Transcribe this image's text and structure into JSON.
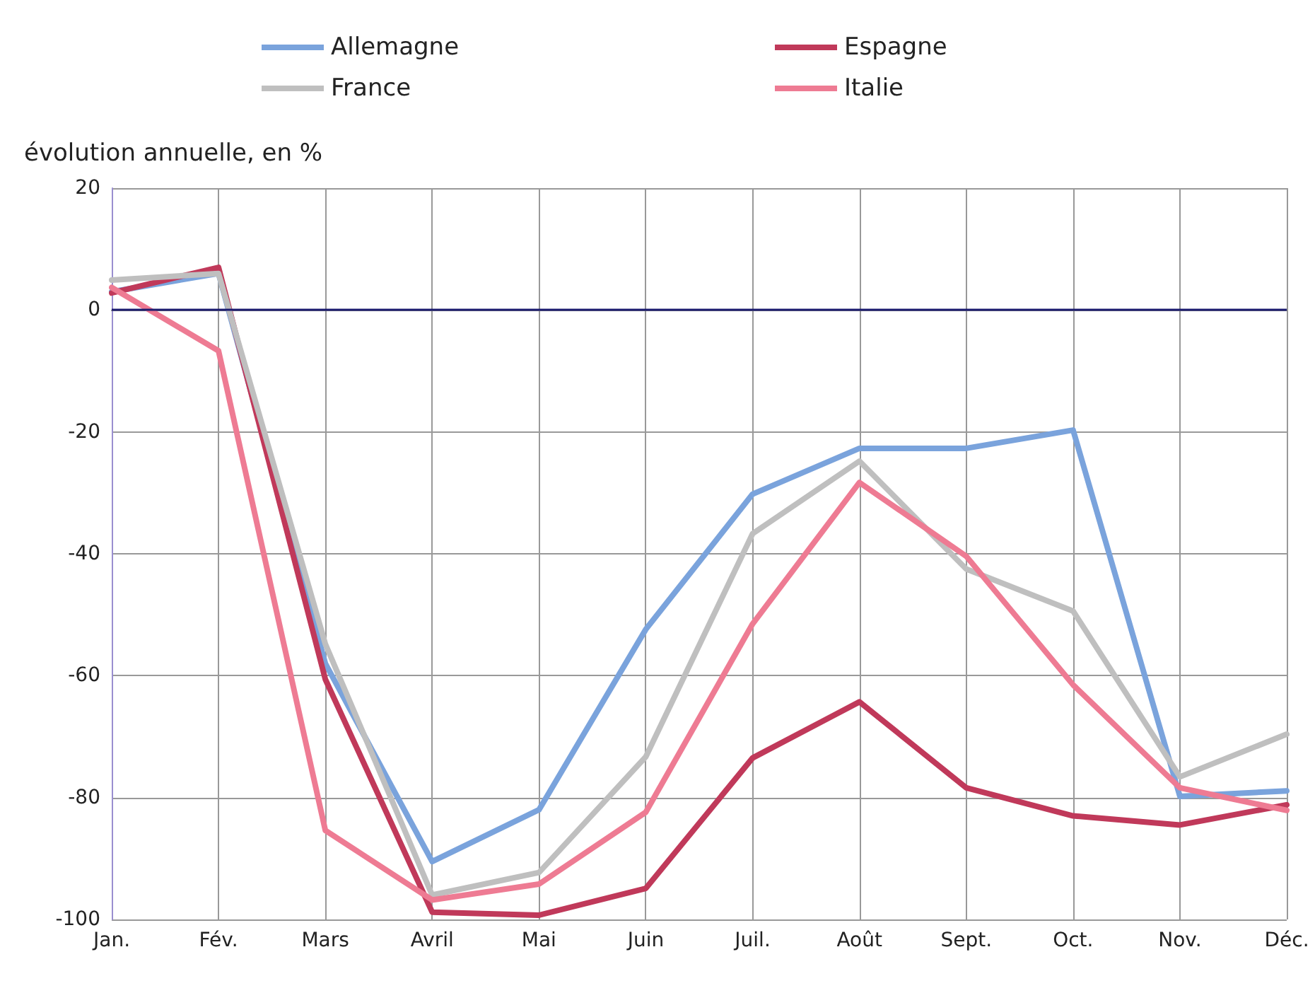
{
  "chart_data": {
    "type": "line",
    "ylabel": "évolution annuelle, en %",
    "categories": [
      "Jan.",
      "Fév.",
      "Mars",
      "Avril",
      "Mai",
      "Juin",
      "Juil.",
      "Août",
      "Sept.",
      "Oct.",
      "Nov.",
      "Déc."
    ],
    "series": [
      {
        "name": "Allemagne",
        "color": "#7aa3dc",
        "values": [
          3,
          6,
          -58,
          -90.5,
          -82,
          -52.4,
          -30.2,
          -22.7,
          -22.7,
          -19.7,
          -79.8,
          -78.9
        ]
      },
      {
        "name": "Espagne",
        "color": "#c0395a",
        "values": [
          2.8,
          7,
          -60.6,
          -98.8,
          -99.3,
          -94.9,
          -73.5,
          -64.3,
          -78.4,
          -83,
          -84.5,
          -81.2
        ]
      },
      {
        "name": "France",
        "color": "#bfbfbf",
        "values": [
          4.9,
          6,
          -54.8,
          -96,
          -92.3,
          -73.3,
          -36.7,
          -24.8,
          -42.5,
          -49.4,
          -76.6,
          -69.6
        ]
      },
      {
        "name": "Italie",
        "color": "#ee7b93",
        "values": [
          3.7,
          -6.7,
          -85.4,
          -96.8,
          -94.2,
          -82.4,
          -51.5,
          -28.3,
          -40.4,
          -61.5,
          -78.4,
          -82.1
        ]
      }
    ],
    "ylim": [
      -100,
      20
    ],
    "yticks": [
      -100,
      -80,
      -60,
      -40,
      -20,
      0,
      20
    ],
    "ref_lines": [
      {
        "axis": "y",
        "value": 0,
        "color": "#1a1a6e"
      }
    ],
    "grid": true,
    "legend": "top",
    "marker": "none",
    "line_style": "solid"
  }
}
